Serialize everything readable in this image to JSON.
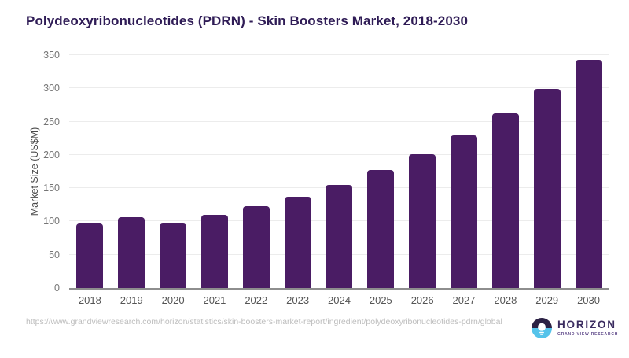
{
  "title": "Polydeoxyribonucleotides (PDRN) - Skin Boosters Market, 2018-2030",
  "chart_data": {
    "type": "bar",
    "title": "Polydeoxyribonucleotides (PDRN) - Skin Boosters Market, 2018-2030",
    "categories": [
      "2018",
      "2019",
      "2020",
      "2021",
      "2022",
      "2023",
      "2024",
      "2025",
      "2026",
      "2027",
      "2028",
      "2029",
      "2030"
    ],
    "values": [
      97,
      107,
      97,
      110,
      123,
      136,
      155,
      177,
      201,
      229,
      262,
      299,
      343
    ],
    "xlabel": "",
    "ylabel": "Market Size (US$M)",
    "ylim": [
      0,
      350
    ],
    "yticks": [
      0,
      50,
      100,
      150,
      200,
      250,
      300,
      350
    ],
    "grid": true,
    "legend": "none",
    "bar_color": "#4A1C64"
  },
  "footer": {
    "source_url": "https://www.grandviewresearch.com/horizon/statistics/skin-boosters-market-report/ingredient/polydeoxyribonucleotides-pdrn/global"
  },
  "logo": {
    "name": "HORIZON",
    "subtext": "GRAND VIEW RESEARCH",
    "icon": "horizon-sunrise-lightbulb-icon",
    "colors": {
      "icon_top": "#2B2144",
      "icon_bottom": "#55C3EA",
      "bulb": "#FFFFFF",
      "text": "#3A2B5F"
    }
  },
  "colors": {
    "title": "#2F1C56",
    "bar": "#4A1C64",
    "axis_line": "#8E8E8E",
    "gridline": "#ECECEC",
    "y_tick_label": "#757575",
    "x_tick_label": "#555555",
    "url_text": "#BDBDBD"
  }
}
